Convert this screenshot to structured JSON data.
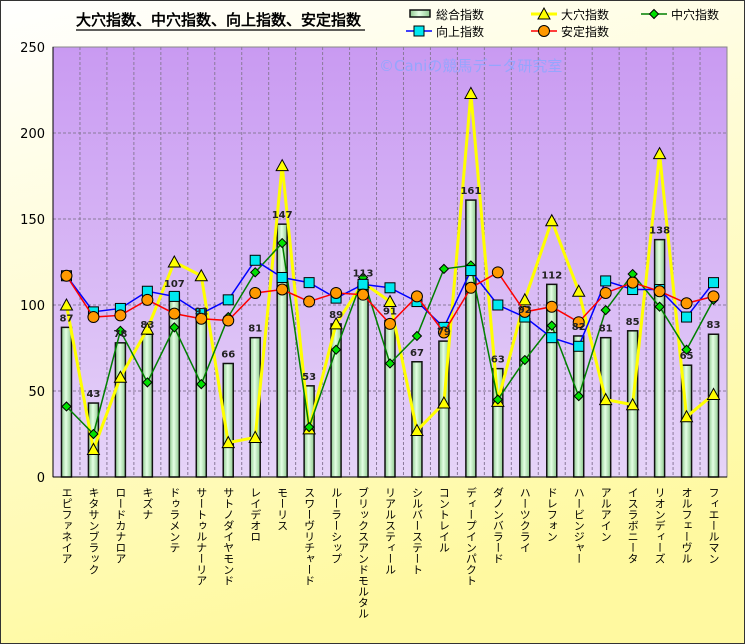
{
  "chart_data": {
    "type": "bar+line",
    "title": "大穴指数、中穴指数、向上指数、安定指数",
    "watermark": "©Caniの競馬データ研究室",
    "xlabel": "",
    "ylabel": "",
    "ylim": [
      0,
      250
    ],
    "yticks": [
      0,
      50,
      100,
      150,
      200,
      250
    ],
    "grid": true,
    "legend_position": "top-right",
    "categories": [
      "エピファネイア",
      "キタサンブラック",
      "ロードカナロア",
      "キズナ",
      "ドゥラメンテ",
      "サートゥルナーリア",
      "サトノダイヤモンド",
      "レイデオロ",
      "モーリス",
      "スワーヴリチャード",
      "ルーラーシップ",
      "ブリックスアンドモルタル",
      "リアルスティール",
      "シルバーステート",
      "コントレイル",
      "ディープインパクト",
      "ダノンバラード",
      "ハーツクライ",
      "ドレフォン",
      "ハービンジャー",
      "アルアイン",
      "イスラボニータ",
      "リオンディーズ",
      "オルフェーヴル",
      "フィエールマン"
    ],
    "series": [
      {
        "name": "総合指数",
        "type": "bar",
        "color": "#c0f0c0",
        "values": [
          87,
          43,
          78,
          83,
          107,
          91,
          66,
          81,
          147,
          53,
          89,
          113,
          91,
          67,
          79,
          161,
          63,
          92,
          112,
          82,
          81,
          85,
          138,
          65,
          83
        ]
      },
      {
        "name": "大穴指数",
        "type": "line",
        "color": "#ffff00",
        "marker": "triangle",
        "marker_color": "#ffff00",
        "values": [
          100,
          16,
          58,
          86,
          125,
          117,
          20,
          23,
          181,
          28,
          89,
          113,
          102,
          27,
          43,
          223,
          44,
          103,
          149,
          108,
          45,
          42,
          188,
          35,
          48
        ]
      },
      {
        "name": "中穴指数",
        "type": "line",
        "color": "#008000",
        "marker": "diamond",
        "marker_color": "#00e000",
        "values": [
          41,
          25,
          85,
          55,
          87,
          54,
          93,
          119,
          136,
          29,
          74,
          116,
          66,
          82,
          121,
          123,
          45,
          68,
          88,
          47,
          97,
          118,
          99,
          74,
          103
        ]
      },
      {
        "name": "向上指数",
        "type": "line",
        "color": "#0000ff",
        "marker": "square",
        "marker_color": "#00e8f0",
        "values": [
          117,
          96,
          98,
          108,
          105,
          95,
          103,
          126,
          116,
          113,
          104,
          112,
          110,
          102,
          87,
          120,
          100,
          93,
          81,
          76,
          114,
          109,
          109,
          93,
          113
        ]
      },
      {
        "name": "安定指数",
        "type": "line",
        "color": "#ff0000",
        "marker": "circle",
        "marker_color": "#ff9900",
        "values": [
          117,
          93,
          94,
          103,
          95,
          92,
          91,
          107,
          109,
          102,
          107,
          106,
          89,
          105,
          84,
          110,
          119,
          96,
          99,
          90,
          107,
          113,
          108,
          101,
          105
        ]
      }
    ]
  }
}
